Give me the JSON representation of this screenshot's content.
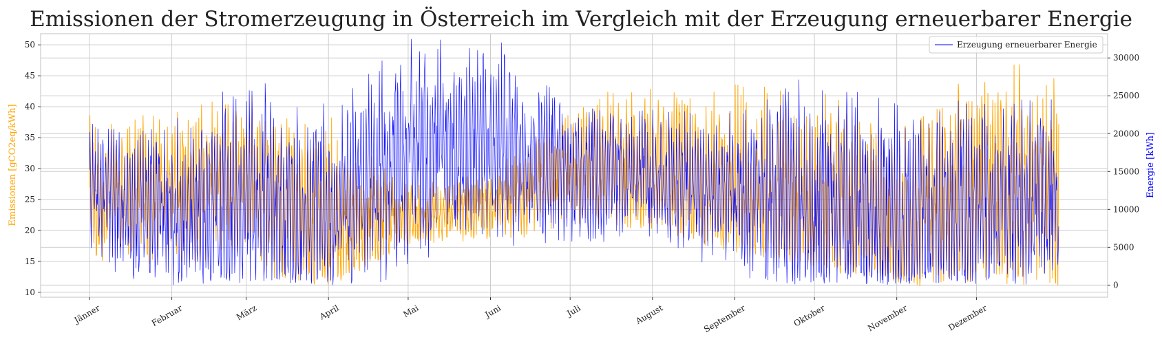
{
  "chart_data": {
    "type": "line",
    "title": "Emissionen der Stromerzeugung in Österreich im Vergleich mit der Erzeugung erneuerbarer Energie",
    "xlabel": "",
    "x_ticks": [
      "Jänner",
      "Februar",
      "März",
      "April",
      "Mai",
      "Juni",
      "Juli",
      "August",
      "September",
      "Oktober",
      "November",
      "Dezember"
    ],
    "y_left": {
      "label": "Emissionen [gCO2eq/kWh]",
      "ticks": [
        10,
        15,
        20,
        25,
        30,
        35,
        40,
        45,
        50
      ],
      "range": [
        9.2,
        51.8
      ],
      "color": "#ffa500"
    },
    "y_right": {
      "label": "Energie [kWh]",
      "ticks": [
        0,
        5000,
        10000,
        15000,
        20000,
        25000,
        30000
      ],
      "range": [
        -1600,
        33200
      ],
      "color": "#0000ff"
    },
    "grid": true,
    "legend": {
      "placement": "top-right",
      "entries": [
        "Erzeugung erneuerbarer Energie"
      ]
    },
    "series": [
      {
        "name": "",
        "axis": "left",
        "color": "#ffa500",
        "monthly_avg": [
          25,
          27,
          29,
          20,
          22,
          24,
          30,
          29,
          27,
          24,
          21,
          27
        ],
        "monthly_peak": [
          38,
          39,
          42,
          38,
          27,
          30,
          41,
          43,
          44,
          42,
          38,
          47
        ],
        "monthly_floor": [
          14,
          11,
          12,
          11,
          18,
          17,
          21,
          20,
          16,
          14,
          11,
          11
        ]
      },
      {
        "name": "Erzeugung erneuerbarer Energie",
        "axis": "right",
        "color": "#0000ff",
        "monthly_avg": [
          13000,
          9000,
          11000,
          10000,
          18000,
          19000,
          15000,
          14000,
          12000,
          10000,
          8000,
          11000
        ],
        "monthly_peak": [
          21000,
          21000,
          26000,
          23000,
          32000,
          32000,
          24000,
          23000,
          22000,
          27000,
          23000,
          24000
        ],
        "monthly_floor": [
          0,
          0,
          0,
          0,
          0,
          0,
          5000,
          0,
          0,
          0,
          0,
          0
        ]
      }
    ]
  }
}
